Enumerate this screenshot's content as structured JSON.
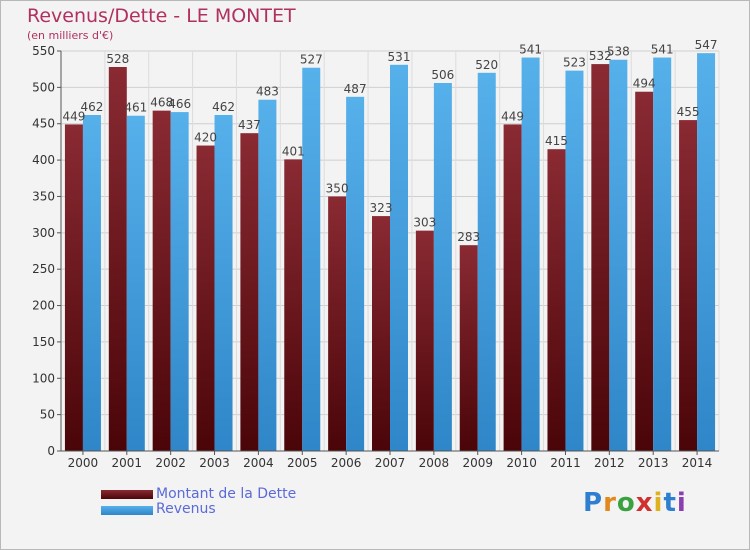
{
  "title": "Revenus/Dette - LE MONTET",
  "subtitle": "(en milliers d'€)",
  "legend": {
    "items": [
      {
        "label": "Montant de la Dette",
        "color": "#7a1d26"
      },
      {
        "label": "Revenus",
        "color": "#4aa3e0"
      }
    ]
  },
  "logo": {
    "text": "Proxiti",
    "letters": [
      "P",
      "r",
      "o",
      "x",
      "i",
      "t",
      "i"
    ],
    "colors": [
      "#2f7fd0",
      "#e08a1e",
      "#3aa040",
      "#d03030",
      "#e0b020",
      "#2f7fd0",
      "#8a3fb0"
    ]
  },
  "chart_data": {
    "type": "bar",
    "title": "Revenus/Dette - LE MONTET",
    "ylabel": "(en milliers d'€)",
    "xlabel": "",
    "ylim": [
      0,
      550
    ],
    "yticks": [
      0,
      50,
      100,
      150,
      200,
      250,
      300,
      350,
      400,
      450,
      500,
      550
    ],
    "grid": true,
    "legend_position": "bottom-left",
    "categories": [
      "2000",
      "2001",
      "2002",
      "2003",
      "2004",
      "2005",
      "2006",
      "2007",
      "2008",
      "2009",
      "2010",
      "2011",
      "2012",
      "2013",
      "2014"
    ],
    "series": [
      {
        "name": "Montant de la Dette",
        "color": "#7a1d26",
        "values": [
          449,
          528,
          468,
          420,
          437,
          401,
          350,
          323,
          303,
          283,
          449,
          415,
          532,
          494,
          455
        ]
      },
      {
        "name": "Revenus",
        "color": "#4aa3e0",
        "values": [
          462,
          461,
          466,
          462,
          483,
          527,
          487,
          531,
          506,
          520,
          541,
          523,
          538,
          541,
          547
        ]
      }
    ]
  }
}
